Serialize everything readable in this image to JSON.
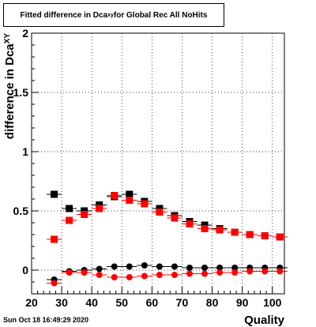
{
  "title": {
    "prefix": "Fitted difference in Dca",
    "sub": "xy",
    "suffix": " for Global Rec All NoHits"
  },
  "timestamp": "Sun Oct 18 16:49:29 2020",
  "chart_data": {
    "type": "scatter",
    "xlabel": "Quality",
    "ylabel": "difference in Dca",
    "ylabel_sub": "XY",
    "xlim": [
      20,
      104
    ],
    "ylim": [
      -0.2,
      2.0
    ],
    "xticks": [
      20,
      30,
      40,
      50,
      60,
      70,
      80,
      90,
      100
    ],
    "yticks": [
      0,
      0.5,
      1,
      1.5,
      2
    ],
    "ytick_labels": [
      "0",
      "0.5",
      "1",
      "1.5",
      "2"
    ],
    "grid": true,
    "x": [
      27.5,
      32.5,
      37.5,
      42.5,
      47.5,
      52.5,
      57.5,
      62.5,
      67.5,
      72.5,
      77.5,
      82.5,
      87.5,
      92.5,
      97.5,
      102.5
    ],
    "series": [
      {
        "marker": "square",
        "color": "#000000",
        "values": [
          0.64,
          0.52,
          0.5,
          0.55,
          0.62,
          0.64,
          0.58,
          0.52,
          0.46,
          0.41,
          0.38,
          0.35,
          0.32,
          0.3,
          0.29,
          0.28
        ]
      },
      {
        "marker": "square",
        "color": "#ff0000",
        "values": [
          0.26,
          0.42,
          0.47,
          0.52,
          0.63,
          0.59,
          0.56,
          0.49,
          0.44,
          0.39,
          0.35,
          0.34,
          0.32,
          0.3,
          0.29,
          0.28
        ]
      },
      {
        "marker": "circle",
        "color": "#000000",
        "values": [
          -0.08,
          -0.01,
          0.0,
          0.01,
          0.03,
          0.03,
          0.04,
          0.03,
          0.03,
          0.02,
          0.02,
          0.02,
          0.02,
          0.02,
          0.02,
          0.02
        ]
      },
      {
        "marker": "circle",
        "color": "#ff0000",
        "values": [
          -0.11,
          -0.02,
          -0.02,
          -0.04,
          -0.06,
          -0.06,
          -0.05,
          -0.04,
          -0.04,
          -0.03,
          -0.03,
          -0.02,
          -0.02,
          -0.01,
          -0.01,
          -0.01
        ]
      }
    ]
  }
}
